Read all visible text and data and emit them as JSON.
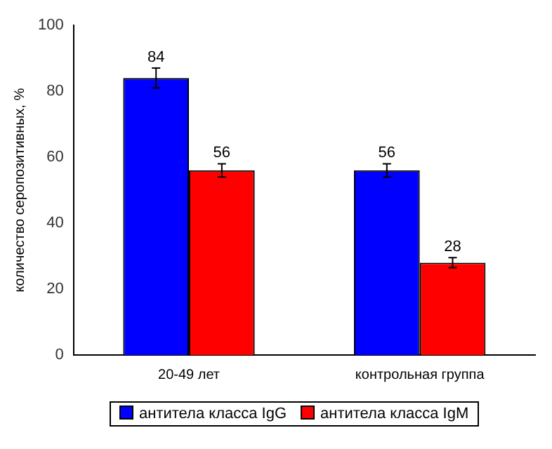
{
  "chart_data": {
    "type": "bar",
    "ylabel": "количество серопозитивных, %",
    "categories": [
      "20-49 лет",
      "контрольная группа"
    ],
    "series": [
      {
        "name": "антитела класса IgG",
        "color": "#0000ff",
        "values": [
          84,
          56
        ],
        "errors": [
          3,
          2
        ]
      },
      {
        "name": "антитела класса IgM",
        "color": "#ff0000",
        "values": [
          56,
          28
        ],
        "errors": [
          2,
          1.5
        ]
      }
    ],
    "ylim": [
      0,
      100
    ],
    "yticks": [
      0,
      20,
      40,
      60,
      80,
      100
    ],
    "grid": false,
    "data_labels": true,
    "legend": "bottom"
  }
}
